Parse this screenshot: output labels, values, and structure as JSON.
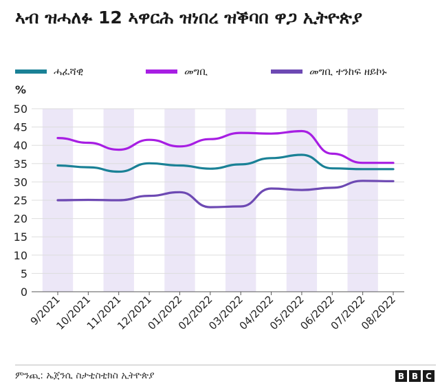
{
  "title": "ኣብ ዝሓለፉ 12 ኣዋርሕ ዝነበረ ዝቕባበ ዋጋ ኢትዮጵያ",
  "legend": [
    {
      "label": "ሓፈሻዊ",
      "color": "#1a8196"
    },
    {
      "label": "መግቢ",
      "color": "#a71ee3"
    },
    {
      "label": "መግቢ ተንከፍ ዘይኮኑ",
      "color": "#6d49b3"
    }
  ],
  "source": "ምንጪ: ኤጀንሲ ስታቲስቲክስ ኢትዮጵያ",
  "brand": [
    "B",
    "B",
    "C"
  ],
  "chart_data": {
    "type": "line",
    "ylabel": "%",
    "xlabel": "",
    "ylim": [
      0,
      50
    ],
    "yticks": [
      0,
      5,
      10,
      15,
      20,
      25,
      30,
      35,
      40,
      45,
      50
    ],
    "grid": true,
    "legend_position": "top",
    "shaded_bands": true,
    "categories": [
      "9/2021",
      "10/2021",
      "11/2021",
      "12/2021",
      "01/2022",
      "02/2022",
      "03/2022",
      "04/2022",
      "05/2022",
      "06/2022",
      "07/2022",
      "08/2022"
    ],
    "series": [
      {
        "name": "ሓፈሻዊ",
        "color": "#1a8196",
        "values": [
          34.5,
          34.0,
          32.8,
          35.1,
          34.5,
          33.6,
          34.8,
          36.5,
          37.4,
          33.7,
          33.5,
          33.5
        ]
      },
      {
        "name": "መግቢ",
        "color": "#a71ee3",
        "values": [
          42.0,
          40.7,
          38.8,
          41.5,
          39.7,
          41.7,
          43.4,
          43.2,
          43.9,
          37.7,
          35.2,
          35.2
        ]
      },
      {
        "name": "መግቢ ተንከፍ ዘይኮኑ",
        "color": "#6d49b3",
        "values": [
          25.0,
          25.1,
          25.0,
          26.2,
          27.2,
          23.1,
          23.3,
          28.2,
          27.8,
          28.4,
          30.3,
          30.2
        ]
      }
    ]
  }
}
